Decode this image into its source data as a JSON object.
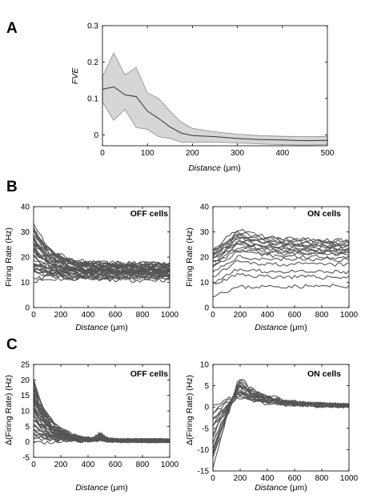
{
  "panel_letters": {
    "a": "A",
    "b": "B",
    "c": "C"
  },
  "cell_labels": {
    "off": "OFF cells",
    "on": "ON cells"
  },
  "colors": {
    "trace": "#555555",
    "band": "#d6d6d6",
    "band_edge": "#8c8c8c",
    "mean_line": "#333333"
  },
  "chart_data": [
    {
      "id": "A",
      "type": "line",
      "title": "",
      "xlabel_italic": "Distance",
      "xlabel_unit": " (μm)",
      "ylabel": "FVE",
      "xlim": [
        0,
        500
      ],
      "ylim": [
        -0.03,
        0.3
      ],
      "xticks": [
        "0",
        "100",
        "200",
        "300",
        "400",
        "500"
      ],
      "yticks": [
        "0",
        "0.1",
        "0.2",
        "0.3"
      ],
      "x": [
        0,
        25,
        50,
        75,
        100,
        125,
        150,
        175,
        200,
        250,
        300,
        350,
        400,
        450,
        500
      ],
      "mean": [
        0.125,
        0.132,
        0.11,
        0.105,
        0.065,
        0.045,
        0.022,
        0.005,
        -0.002,
        -0.005,
        -0.01,
        -0.013,
        -0.014,
        -0.016,
        -0.015
      ],
      "upper": [
        0.16,
        0.225,
        0.165,
        0.185,
        0.115,
        0.1,
        0.065,
        0.035,
        0.018,
        0.008,
        0.002,
        -0.002,
        -0.004,
        -0.005,
        -0.004
      ],
      "lower": [
        0.09,
        0.04,
        0.07,
        0.02,
        0.015,
        -0.005,
        -0.01,
        -0.02,
        -0.02,
        -0.02,
        -0.022,
        -0.025,
        -0.027,
        -0.028,
        -0.027
      ],
      "grid": false
    },
    {
      "id": "B-OFF",
      "type": "line",
      "panel_label": "OFF cells",
      "xlabel_italic": "Distance",
      "xlabel_unit": " (μm)",
      "ylabel": "Firing Rate (Hz)",
      "xlim": [
        0,
        1000
      ],
      "ylim": [
        0,
        40
      ],
      "xticks": [
        "0",
        "200",
        "400",
        "600",
        "800",
        "1000"
      ],
      "yticks": [
        "0",
        "10",
        "20",
        "30",
        "40"
      ],
      "trace_count": 36,
      "start_range": [
        12,
        33
      ],
      "end_range": [
        9.5,
        19
      ],
      "decay_length": 130,
      "grid": false
    },
    {
      "id": "B-ON",
      "type": "line",
      "panel_label": "ON cells",
      "xlabel_italic": "Distance",
      "xlabel_unit": " (μm)",
      "ylabel": "Firing Rate (Hz)",
      "xlim": [
        0,
        1000
      ],
      "ylim": [
        0,
        40
      ],
      "xticks": [
        "0",
        "200",
        "400",
        "600",
        "800",
        "1000"
      ],
      "yticks": [
        "0",
        "10",
        "20",
        "30",
        "40"
      ],
      "start_values": [
        5,
        9,
        10,
        12,
        14,
        16,
        17,
        18,
        18,
        19,
        19,
        20,
        20,
        21,
        21,
        22,
        22,
        23
      ],
      "peak_values": [
        8,
        13,
        15,
        18,
        20,
        22,
        23,
        24,
        25,
        26,
        26,
        27,
        28,
        28,
        29,
        29,
        30,
        31
      ],
      "end_values": [
        8.5,
        12,
        14,
        17,
        19,
        20,
        21,
        21.5,
        22,
        22.5,
        23,
        23.5,
        24,
        24.5,
        25,
        25.5,
        26,
        26.5
      ],
      "peak_at": 180,
      "grid": false
    },
    {
      "id": "C-OFF",
      "type": "line",
      "panel_label": "OFF cells",
      "xlabel_italic": "Distance",
      "xlabel_unit": " (μm)",
      "ylabel": "Δ(Firing Rate) (Hz)",
      "xlim": [
        0,
        1000
      ],
      "ylim": [
        -5,
        25
      ],
      "xticks": [
        "0",
        "200",
        "400",
        "600",
        "800",
        "1000"
      ],
      "yticks": [
        "-5",
        "0",
        "5",
        "10",
        "15",
        "20",
        "25"
      ],
      "trace_count": 36,
      "start_range": [
        0,
        20
      ],
      "decay_length": 120,
      "grid": false
    },
    {
      "id": "C-ON",
      "type": "line",
      "panel_label": "ON cells",
      "xlabel_italic": "Distance",
      "xlabel_unit": " (μm)",
      "ylabel": "Δ(Firing Rate) (Hz)",
      "xlim": [
        0,
        1000
      ],
      "ylim": [
        -15,
        10
      ],
      "xticks": [
        "0",
        "200",
        "400",
        "600",
        "800",
        "1000"
      ],
      "yticks": [
        "-15",
        "-10",
        "-5",
        "0",
        "5",
        "10"
      ],
      "trace_count": 18,
      "start_range": [
        -13,
        0
      ],
      "peak_range": [
        2.5,
        6.5
      ],
      "peak_at": 190,
      "grid": false
    }
  ]
}
